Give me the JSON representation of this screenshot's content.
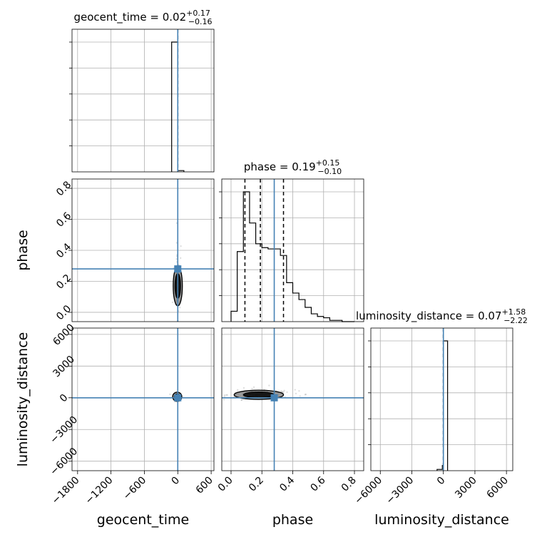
{
  "chart_data": {
    "type": "corner",
    "parameters": [
      "geocent_time",
      "phase",
      "luminosity_distance"
    ],
    "truth_color": "#4682b4",
    "truths": {
      "geocent_time": 0.0,
      "phase": 0.28,
      "luminosity_distance": 0.0
    },
    "titles": [
      {
        "param": "geocent_time",
        "prefix": "geocent_time = 0.02",
        "plus": "+0.17",
        "minus": "−0.16"
      },
      {
        "param": "phase",
        "prefix": "phase = 0.19",
        "plus": "+0.15",
        "minus": "−0.10"
      },
      {
        "param": "luminosity_distance",
        "prefix": "luminosity_distance = 0.07",
        "plus": "+1.58",
        "minus": "−2.22"
      }
    ],
    "axes": {
      "geocent_time": {
        "label": "geocent_time",
        "range": [
          -1900,
          650
        ],
        "ticks": [
          -1800,
          -1200,
          -600,
          0,
          600
        ],
        "tick_labels": [
          "−1800",
          "−1200",
          "−600",
          "0",
          "600"
        ]
      },
      "phase": {
        "label": "phase",
        "range": [
          -0.06,
          0.86
        ],
        "ticks": [
          0.0,
          0.2,
          0.4,
          0.6,
          0.8
        ],
        "tick_labels": [
          "0.0",
          "0.2",
          "0.4",
          "0.6",
          "0.8"
        ]
      },
      "luminosity_distance": {
        "label": "luminosity_distance",
        "range": [
          -6900,
          6600
        ],
        "ticks": [
          -6000,
          -3000,
          0,
          3000,
          6000
        ],
        "tick_labels": [
          "−6000",
          "−3000",
          "0",
          "3000",
          "6000"
        ]
      }
    },
    "histograms": {
      "geocent_time": {
        "bin_edges": [
          -110,
          0,
          110
        ],
        "counts": [
          1.0,
          0.01
        ],
        "quantiles": [
          -0.14,
          0.02,
          0.19
        ]
      },
      "phase": {
        "bin_edges": [
          0.0,
          0.04,
          0.08,
          0.12,
          0.16,
          0.2,
          0.24,
          0.28,
          0.32,
          0.36,
          0.4,
          0.44,
          0.48,
          0.52,
          0.56,
          0.6,
          0.64,
          0.68,
          0.72,
          0.76,
          0.8
        ],
        "counts": [
          0.08,
          0.54,
          1.0,
          0.76,
          0.6,
          0.57,
          0.56,
          0.56,
          0.51,
          0.3,
          0.22,
          0.17,
          0.11,
          0.06,
          0.04,
          0.03,
          0.01,
          0.01,
          0.0,
          0.0
        ],
        "quantiles": [
          0.09,
          0.19,
          0.34
        ]
      },
      "luminosity_distance": {
        "bin_edges": [
          -600,
          -100,
          0,
          400
        ],
        "counts": [
          0.01,
          0.04,
          1.0
        ],
        "quantiles": [
          -2.15,
          0.07,
          1.65
        ]
      }
    },
    "scatter_2d": {
      "geocent_time_vs_phase": {
        "center": [
          0,
          0.17
        ],
        "spread": [
          18,
          0.08
        ]
      },
      "geocent_time_vs_luminosity_distance": {
        "center": [
          -10,
          100
        ],
        "spread": [
          15,
          80
        ]
      },
      "phase_vs_luminosity_distance": {
        "center": [
          0.18,
          280
        ],
        "spread": [
          0.1,
          180
        ]
      }
    }
  }
}
